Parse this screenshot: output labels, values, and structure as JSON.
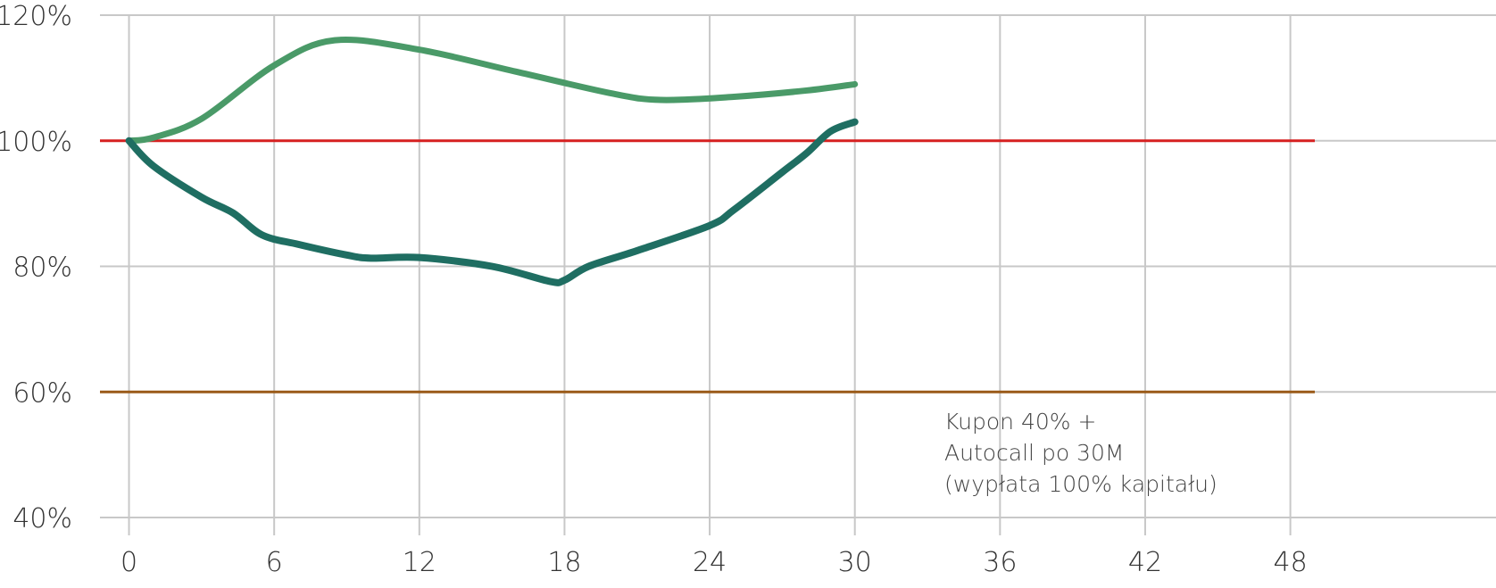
{
  "chart_data": {
    "type": "line",
    "x_ticks": [
      0,
      6,
      12,
      18,
      24,
      30,
      36,
      42,
      48
    ],
    "y_ticks": [
      "40%",
      "60%",
      "80%",
      "100%",
      "120%"
    ],
    "y_tick_values": [
      40,
      60,
      80,
      100,
      120
    ],
    "xlim": [
      -1.2,
      56.5
    ],
    "ylim": [
      40,
      120
    ],
    "grid": true,
    "series": [
      {
        "color": "#4a9a68",
        "points": [
          [
            0,
            100
          ],
          [
            1,
            100.5
          ],
          [
            3,
            103.5
          ],
          [
            6,
            112
          ],
          [
            8.5,
            116
          ],
          [
            12,
            114.5
          ],
          [
            16,
            111
          ],
          [
            20,
            107.5
          ],
          [
            22,
            106.5
          ],
          [
            25,
            107
          ],
          [
            28,
            108
          ],
          [
            30,
            109
          ]
        ]
      },
      {
        "color": "#1f6e62",
        "points": [
          [
            0,
            100
          ],
          [
            1,
            96
          ],
          [
            3,
            91
          ],
          [
            4.3,
            88.5
          ],
          [
            5.5,
            85
          ],
          [
            7,
            83.5
          ],
          [
            9,
            81.8
          ],
          [
            10,
            81.3
          ],
          [
            12,
            81.4
          ],
          [
            15,
            80
          ],
          [
            17.4,
            77.6
          ],
          [
            18,
            77.8
          ],
          [
            19,
            80
          ],
          [
            21,
            82.5
          ],
          [
            24,
            86.5
          ],
          [
            25,
            89
          ],
          [
            27,
            95
          ],
          [
            28,
            98
          ],
          [
            29,
            101.5
          ],
          [
            30,
            103
          ]
        ]
      }
    ],
    "reference_lines": [
      {
        "y": 100,
        "color": "#d62020"
      },
      {
        "y": 60,
        "color": "#9a5a18"
      }
    ],
    "annotations": [
      {
        "lines": [
          "Kupon 40% +",
          "Autocall po 30M",
          "(wypłata 100% kapitału)"
        ]
      }
    ]
  }
}
